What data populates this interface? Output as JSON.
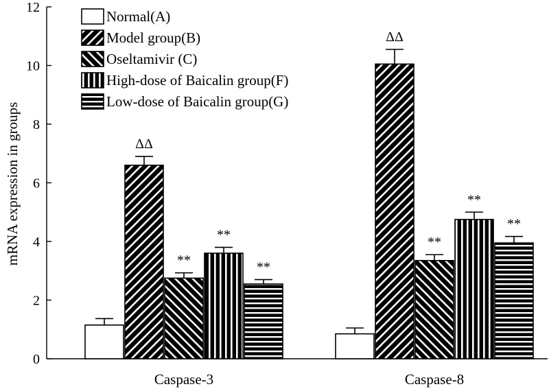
{
  "chart_data": {
    "type": "bar",
    "title": "",
    "xlabel": "",
    "ylabel": "mRNA expression in groups",
    "ylim": [
      0,
      12
    ],
    "yticks": [
      0,
      2,
      4,
      6,
      8,
      10,
      12
    ],
    "categories": [
      "Caspase-3",
      "Caspase-8"
    ],
    "series": [
      {
        "name": "Normal(A)",
        "pattern": "blank",
        "values": [
          1.15,
          0.85
        ],
        "errors": [
          0.22,
          0.2
        ],
        "annotations": [
          "",
          ""
        ]
      },
      {
        "name": "Model group(B)",
        "pattern": "back-diagonal",
        "values": [
          6.6,
          10.05
        ],
        "errors": [
          0.3,
          0.5
        ],
        "annotations": [
          "ΔΔ",
          "ΔΔ"
        ]
      },
      {
        "name": "Oseltamivir (C)",
        "pattern": "diagonal",
        "values": [
          2.75,
          3.35
        ],
        "errors": [
          0.18,
          0.2
        ],
        "annotations": [
          "**",
          "**"
        ]
      },
      {
        "name": "High-dose of Baicalin group(F)",
        "pattern": "vertical",
        "values": [
          3.6,
          4.75
        ],
        "errors": [
          0.2,
          0.25
        ],
        "annotations": [
          "**",
          "**"
        ]
      },
      {
        "name": "Low-dose of Baicalin group(G)",
        "pattern": "horizontal",
        "values": [
          2.55,
          3.95
        ],
        "errors": [
          0.15,
          0.22
        ],
        "annotations": [
          "**",
          "**"
        ]
      }
    ],
    "legend_position": "top-left",
    "grid": false
  }
}
